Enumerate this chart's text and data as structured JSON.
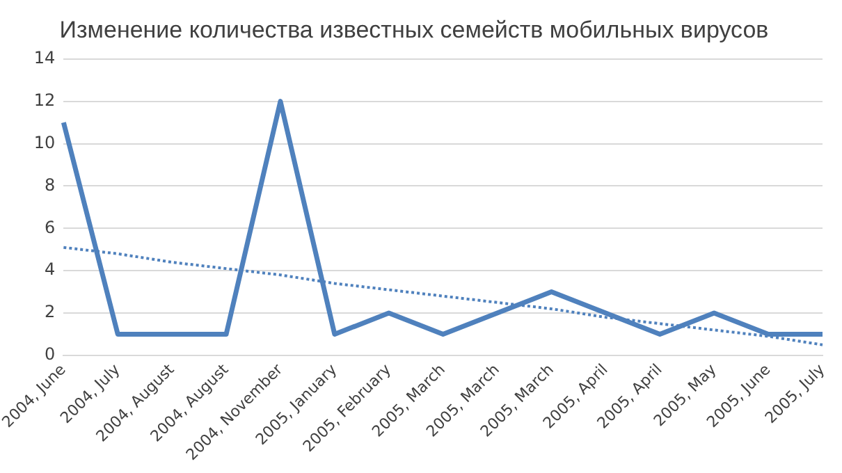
{
  "chart_data": {
    "type": "line",
    "title": "Изменение количества известных семейств мобильных вирусов",
    "categories": [
      "2004, June",
      "2004, July",
      "2004, August",
      "2004, August",
      "2004, November",
      "2005, January",
      "2005, February",
      "2005, March",
      "2005, March",
      "2005, March",
      "2005, April",
      "2005, April",
      "2005, May",
      "2005, June",
      "2005, July"
    ],
    "series": [
      {
        "color": "#4f81bd",
        "values": [
          11,
          1,
          1,
          1,
          12,
          1,
          2,
          1,
          2,
          3,
          2,
          1,
          2,
          1,
          1
        ],
        "line_style": "solid"
      },
      {
        "color": "#4f81bd",
        "values": [
          5.1,
          4.8,
          4.4,
          4.1,
          3.8,
          3.4,
          3.1,
          2.8,
          2.5,
          2.2,
          1.8,
          1.5,
          1.2,
          0.9,
          0.5
        ],
        "line_style": "dotted"
      }
    ],
    "ylim": [
      0,
      14
    ],
    "yticks": [
      0,
      2,
      4,
      6,
      8,
      10,
      12,
      14
    ],
    "grid": "y",
    "legend": false,
    "marker": "none"
  }
}
